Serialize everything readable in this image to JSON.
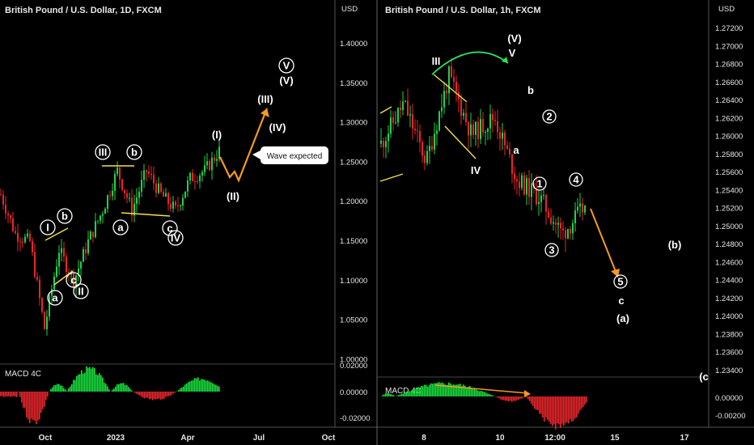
{
  "left_chart": {
    "title": "British Pound / U.S. Dollar, 1D, FXCM",
    "price_axis": {
      "unit": "USD",
      "ticks": [
        "1.40000",
        "1.35000",
        "1.30000",
        "1.25000",
        "1.20000",
        "1.15000",
        "1.10000",
        "1.05000",
        "1.00000"
      ]
    },
    "time_axis": {
      "ticks": [
        "Oct",
        "2023",
        "Apr",
        "Jul",
        "Oct"
      ]
    },
    "indicator": {
      "name": "MACD 4C",
      "ticks": [
        "0.02000",
        "0.00000",
        "-0.02000"
      ]
    },
    "wave_labels": [
      "I",
      "II",
      "III",
      "IV",
      "a",
      "b",
      "c",
      "a",
      "b",
      "c",
      "(I)",
      "(II)",
      "(III)",
      "(IV)",
      "V",
      "(V)"
    ],
    "callout": "Wave expected"
  },
  "right_chart": {
    "title": "British Pound / U.S. Dollar, 1h, FXCM",
    "price_axis": {
      "unit": "USD",
      "ticks": [
        "1.27200",
        "1.27000",
        "1.26800",
        "1.26600",
        "1.26400",
        "1.26200",
        "1.26000",
        "1.25800",
        "1.25600",
        "1.25400",
        "1.25200",
        "1.25000",
        "1.24800",
        "1.24600",
        "1.24400",
        "1.24200",
        "1.24000",
        "1.23800",
        "1.23600",
        "1.23400"
      ]
    },
    "time_axis": {
      "ticks": [
        "8",
        "10",
        "12:00",
        "15",
        "17"
      ]
    },
    "indicator": {
      "name": "MACD 4C",
      "ticks": [
        "0.00000",
        "-0.00200"
      ]
    },
    "wave_labels": [
      "III",
      "IV",
      "(V)",
      "V",
      "a",
      "b",
      "1",
      "2",
      "3",
      "4",
      "5",
      "c",
      "(a)",
      "(b)",
      "(c"
    ]
  },
  "chart_data": [
    {
      "type": "candlestick",
      "title": "British Pound / U.S. Dollar, 1D, FXCM",
      "ylabel": "USD",
      "ylim": [
        1.0,
        1.4
      ],
      "series": [
        {
          "date": "2022-08",
          "close": 1.21
        },
        {
          "date": "2022-09-01",
          "close": 1.16
        },
        {
          "date": "2022-09-15",
          "close": 1.15
        },
        {
          "date": "2022-09-26",
          "close": 1.04
        },
        {
          "date": "2022-10-05",
          "close": 1.14
        },
        {
          "date": "2022-10-12",
          "close": 1.1
        },
        {
          "date": "2022-10-25",
          "close": 1.15
        },
        {
          "date": "2022-11-15",
          "close": 1.19
        },
        {
          "date": "2022-12-14",
          "close": 1.24
        },
        {
          "date": "2023-01-05",
          "close": 1.19
        },
        {
          "date": "2023-01-23",
          "close": 1.24
        },
        {
          "date": "2023-02-10",
          "close": 1.21
        },
        {
          "date": "2023-03-08",
          "close": 1.19
        },
        {
          "date": "2023-03-24",
          "close": 1.23
        },
        {
          "date": "2023-04-14",
          "close": 1.24
        },
        {
          "date": "2023-05-10",
          "close": 1.265
        }
      ],
      "projection": [
        {
          "date": "2023-05-10",
          "close": 1.265
        },
        {
          "date": "2023-06-01",
          "close": 1.22
        },
        {
          "date": "2023-07-01",
          "close": 1.32
        }
      ]
    },
    {
      "type": "candlestick",
      "title": "British Pound / U.S. Dollar, 1h, FXCM",
      "ylabel": "USD",
      "ylim": [
        1.234,
        1.272
      ],
      "series": [
        {
          "date": "8",
          "close": 1.26
        },
        {
          "date": "8",
          "close": 1.2645
        },
        {
          "date": "9",
          "close": 1.258
        },
        {
          "date": "10",
          "close": 1.2675
        },
        {
          "date": "10",
          "close": 1.261
        },
        {
          "date": "10",
          "close": 1.263
        },
        {
          "date": "11",
          "close": 1.256
        },
        {
          "date": "11",
          "close": 1.254
        },
        {
          "date": "11",
          "close": 1.25
        },
        {
          "date": "11",
          "close": 1.253
        }
      ],
      "projection": [
        {
          "date": "11",
          "close": 1.252
        },
        {
          "date": "14",
          "close": 1.245
        }
      ]
    }
  ]
}
